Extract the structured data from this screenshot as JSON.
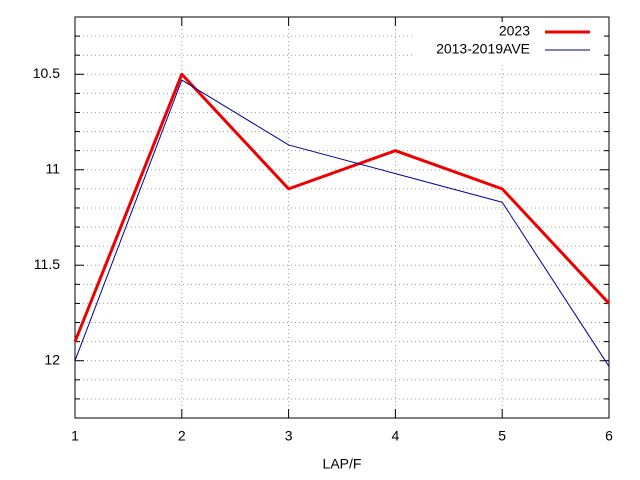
{
  "chart_data": {
    "type": "line",
    "x_label": "LAP/F",
    "x": [
      1,
      2,
      3,
      4,
      5,
      6
    ],
    "xlim": [
      1,
      6
    ],
    "xticks": [
      1,
      2,
      3,
      4,
      5,
      6
    ],
    "ylim": [
      12.3,
      10.2
    ],
    "yticks": [
      10.5,
      11,
      11.5,
      12
    ],
    "minor_yticks": [
      10.2,
      10.3,
      10.4,
      10.6,
      10.7,
      10.8,
      10.9,
      11.1,
      11.2,
      11.3,
      11.4,
      11.6,
      11.7,
      11.8,
      11.9,
      12.1,
      12.2
    ],
    "grid": true,
    "legend": "top-right",
    "series": [
      {
        "name": "2023",
        "color": "#ee0000",
        "width": 3,
        "values": [
          11.9,
          10.5,
          11.1,
          10.9,
          11.1,
          11.7
        ]
      },
      {
        "name": "2013-2019AVE",
        "color": "#000099",
        "width": 1,
        "values": [
          12.0,
          10.53,
          10.87,
          11.02,
          11.17,
          12.03
        ]
      }
    ]
  }
}
